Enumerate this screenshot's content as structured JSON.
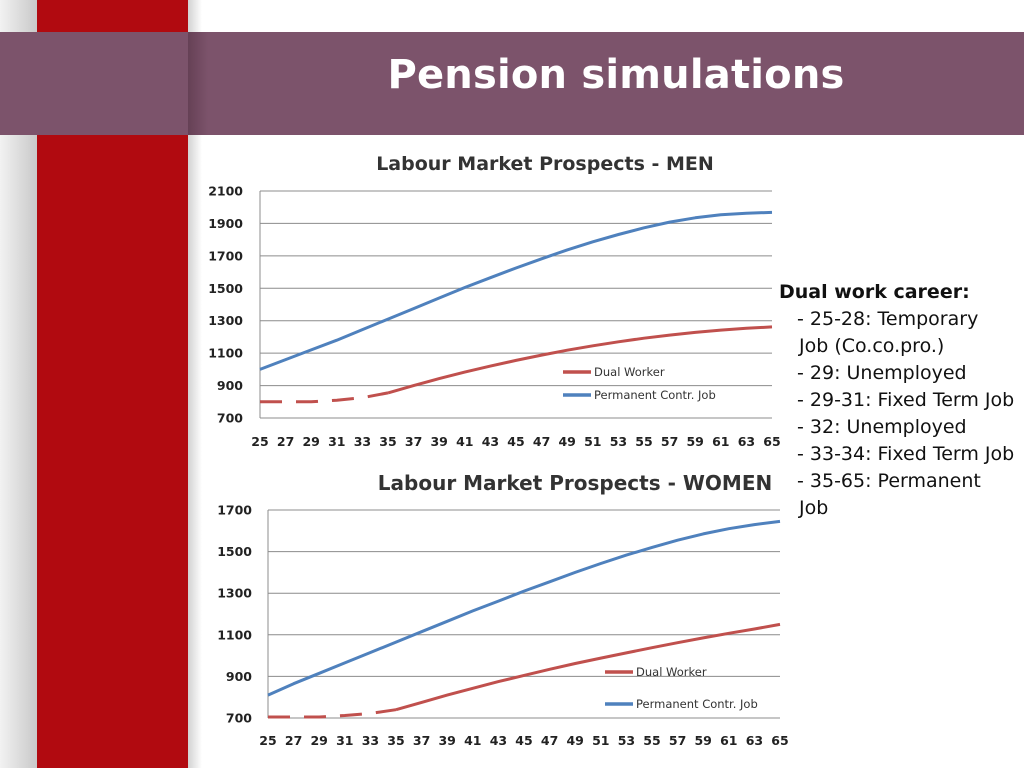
{
  "slide": {
    "title": "Pension simulations",
    "colors": {
      "red_bar": "#b10a10",
      "title_band": "#7c536b",
      "blue_series": "#4f81bd",
      "red_series": "#c0504d"
    }
  },
  "notes": {
    "heading": "Dual work career:",
    "items": [
      "- 25-28:  Temporary",
      "Job (Co.co.pro.)",
      "- 29: Unemployed",
      "- 29-31: Fixed Term Job",
      "- 32: Unemployed",
      "- 33-34: Fixed Term Job",
      "- 35-65: Permanent",
      "Job"
    ]
  },
  "chart_data": [
    {
      "type": "line",
      "title": "Labour Market Prospects - MEN",
      "xlabel": "",
      "ylabel": "",
      "x": [
        25,
        27,
        29,
        31,
        33,
        35,
        37,
        39,
        41,
        43,
        45,
        47,
        49,
        51,
        53,
        55,
        57,
        59,
        61,
        63,
        65
      ],
      "ylim": [
        700,
        2100
      ],
      "yticks": [
        700,
        900,
        1100,
        1300,
        1500,
        1700,
        1900,
        2100
      ],
      "grid": true,
      "legend": "right-inside",
      "series": [
        {
          "name": "Dual Worker",
          "color": "#c0504d",
          "segments": [
            {
              "style": "dashed",
              "x": [
                25,
                27,
                29,
                31,
                33,
                35
              ],
              "y": [
                800,
                800,
                800,
                810,
                825,
                855
              ]
            },
            {
              "style": "solid",
              "x": [
                35,
                37,
                39,
                41,
                43,
                45,
                47,
                49,
                51,
                53,
                55,
                57,
                59,
                61,
                63,
                65
              ],
              "y": [
                855,
                900,
                943,
                983,
                1020,
                1055,
                1088,
                1118,
                1145,
                1170,
                1192,
                1211,
                1228,
                1242,
                1253,
                1262
              ]
            }
          ]
        },
        {
          "name": "Permanent Contr. Job",
          "color": "#4f81bd",
          "segments": [
            {
              "style": "solid",
              "x": [
                25,
                27,
                29,
                31,
                33,
                35,
                37,
                39,
                41,
                43,
                45,
                47,
                49,
                51,
                53,
                55,
                57,
                59,
                61,
                63,
                65
              ],
              "y": [
                1000,
                1060,
                1120,
                1180,
                1245,
                1310,
                1375,
                1440,
                1505,
                1565,
                1625,
                1682,
                1737,
                1787,
                1832,
                1873,
                1908,
                1935,
                1953,
                1963,
                1968
              ]
            }
          ]
        }
      ]
    },
    {
      "type": "line",
      "title": "Labour Market Prospects - WOMEN",
      "xlabel": "",
      "ylabel": "",
      "x": [
        25,
        27,
        29,
        31,
        33,
        35,
        37,
        39,
        41,
        43,
        45,
        47,
        49,
        51,
        53,
        55,
        57,
        59,
        61,
        63,
        65
      ],
      "ylim": [
        700,
        1700
      ],
      "yticks": [
        700,
        900,
        1100,
        1300,
        1500,
        1700
      ],
      "grid": true,
      "legend": "right-inside",
      "series": [
        {
          "name": "Dual Worker",
          "color": "#c0504d",
          "segments": [
            {
              "style": "dashed",
              "x": [
                25,
                27,
                29,
                31,
                33,
                35
              ],
              "y": [
                705,
                705,
                705,
                712,
                722,
                740
              ]
            },
            {
              "style": "solid",
              "x": [
                35,
                37,
                39,
                41,
                43,
                45,
                47,
                49,
                51,
                53,
                55,
                57,
                59,
                61,
                63,
                65
              ],
              "y": [
                740,
                775,
                810,
                843,
                875,
                905,
                934,
                962,
                988,
                1013,
                1038,
                1062,
                1085,
                1107,
                1128,
                1150
              ]
            }
          ]
        },
        {
          "name": "Permanent Contr. Job",
          "color": "#4f81bd",
          "segments": [
            {
              "style": "solid",
              "x": [
                25,
                27,
                29,
                31,
                33,
                35,
                37,
                39,
                41,
                43,
                45,
                47,
                49,
                51,
                53,
                55,
                57,
                59,
                61,
                63,
                65
              ],
              "y": [
                810,
                865,
                915,
                965,
                1015,
                1065,
                1115,
                1165,
                1215,
                1262,
                1310,
                1355,
                1400,
                1443,
                1483,
                1520,
                1555,
                1585,
                1610,
                1630,
                1645
              ]
            }
          ]
        }
      ]
    }
  ]
}
